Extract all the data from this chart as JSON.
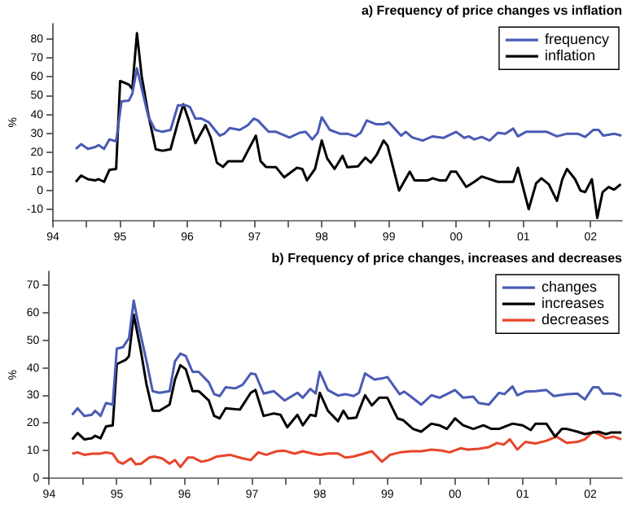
{
  "chart_data": [
    {
      "type": "line",
      "title": "a) Frequency of price changes vs inflation",
      "ylabel": "%",
      "legend": "top right",
      "grid": false,
      "marker": "none",
      "xlim": [
        1994,
        2002.47
      ],
      "xticks": [
        {
          "value": 1994,
          "label": "94"
        },
        {
          "value": 1994.5,
          "label": null
        },
        {
          "value": 1995,
          "label": "95"
        },
        {
          "value": 1995.5,
          "label": null
        },
        {
          "value": 1996,
          "label": "96"
        },
        {
          "value": 1996.5,
          "label": null
        },
        {
          "value": 1997,
          "label": "97"
        },
        {
          "value": 1997.5,
          "label": null
        },
        {
          "value": 1998,
          "label": "98"
        },
        {
          "value": 1998.5,
          "label": null
        },
        {
          "value": 1999,
          "label": "99"
        },
        {
          "value": 1999.5,
          "label": null
        },
        {
          "value": 2000,
          "label": "00"
        },
        {
          "value": 2000.5,
          "label": null
        },
        {
          "value": 2001,
          "label": "01"
        },
        {
          "value": 2001.5,
          "label": null
        },
        {
          "value": 2002,
          "label": "02"
        }
      ],
      "ylim": [
        -16,
        88
      ],
      "yticks": [
        -10,
        0,
        10,
        20,
        30,
        40,
        50,
        60,
        70,
        80
      ],
      "series": [
        {
          "name": "frequency",
          "color": "#4a5bb5",
          "x": [
            1994.34,
            1994.42,
            1994.52,
            1994.63,
            1994.68,
            1994.76,
            1994.84,
            1994.94,
            1995.02,
            1995.13,
            1995.18,
            1995.25,
            1995.32,
            1995.42,
            1995.52,
            1995.63,
            1995.75,
            1995.86,
            1995.98,
            1996.04,
            1996.12,
            1996.21,
            1996.32,
            1996.48,
            1996.55,
            1996.63,
            1996.78,
            1996.9,
            1996.99,
            1997.05,
            1997.13,
            1997.21,
            1997.32,
            1997.52,
            1997.67,
            1997.76,
            1997.86,
            1997.94,
            1998.0,
            1998.12,
            1998.27,
            1998.38,
            1998.5,
            1998.58,
            1998.67,
            1998.81,
            1998.92,
            1999.0,
            1999.18,
            1999.25,
            1999.35,
            1999.5,
            1999.65,
            1999.81,
            2000.0,
            2000.12,
            2000.19,
            2000.27,
            2000.38,
            2000.5,
            2000.62,
            2000.73,
            2000.85,
            2000.92,
            2001.04,
            2001.19,
            2001.35,
            2001.5,
            2001.65,
            2001.81,
            2001.92,
            2002.04,
            2002.12,
            2002.19,
            2002.35,
            2002.46
          ],
          "values": [
            22,
            24.5,
            22,
            23,
            24,
            22,
            27,
            26,
            47,
            47.5,
            51,
            64.5,
            54,
            39,
            32,
            31,
            32,
            45,
            45,
            44,
            38,
            38,
            36,
            29,
            30,
            33,
            32,
            34.5,
            38,
            37,
            34,
            31,
            31,
            28,
            30.5,
            31,
            27,
            30.5,
            38.7,
            32,
            30,
            30,
            28.6,
            30.5,
            37,
            35,
            35,
            36,
            29,
            31,
            28,
            26.4,
            28.6,
            27.8,
            31,
            27.8,
            28.6,
            27,
            28.3,
            26.4,
            30.5,
            30,
            32.7,
            28.6,
            31,
            31,
            31,
            28.6,
            30,
            30,
            28.3,
            32,
            32,
            29,
            30,
            29
          ]
        },
        {
          "name": "inflation",
          "color": "#000000",
          "x": [
            1994.34,
            1994.42,
            1994.52,
            1994.63,
            1994.68,
            1994.76,
            1994.84,
            1994.94,
            1995.0,
            1995.13,
            1995.18,
            1995.25,
            1995.32,
            1995.42,
            1995.53,
            1995.63,
            1995.75,
            1995.86,
            1995.94,
            1996.02,
            1996.12,
            1996.27,
            1996.35,
            1996.44,
            1996.53,
            1996.61,
            1996.82,
            1996.9,
            1997.02,
            1997.09,
            1997.17,
            1997.32,
            1997.44,
            1997.63,
            1997.71,
            1997.78,
            1997.9,
            1998.0,
            1998.08,
            1998.19,
            1998.31,
            1998.38,
            1998.54,
            1998.65,
            1998.73,
            1998.82,
            1998.92,
            1998.98,
            1999.15,
            1999.31,
            1999.38,
            1999.58,
            1999.65,
            1999.75,
            1999.85,
            1999.92,
            2000.0,
            2000.15,
            2000.27,
            2000.38,
            2000.46,
            2000.62,
            2000.77,
            2000.85,
            2000.92,
            2001.08,
            2001.19,
            2001.27,
            2001.38,
            2001.5,
            2001.58,
            2001.65,
            2001.77,
            2001.85,
            2001.92,
            2002.02,
            2002.1,
            2002.18,
            2002.27,
            2002.35,
            2002.45
          ],
          "values": [
            4.6,
            7.9,
            6,
            5.4,
            6,
            4.6,
            10.9,
            11.4,
            57.8,
            55.9,
            53.7,
            83,
            60.5,
            40,
            21.8,
            21,
            21.8,
            36,
            45.5,
            37.3,
            25,
            34.6,
            27.8,
            14.7,
            12.5,
            15.5,
            15.5,
            21,
            29,
            15.5,
            12.5,
            12.3,
            7,
            12,
            11.4,
            5.4,
            11.4,
            26.4,
            17,
            11.4,
            18.3,
            12.3,
            12.8,
            17.4,
            14.7,
            19,
            26.4,
            23.7,
            0,
            10,
            5.4,
            5.4,
            6.5,
            5.4,
            5.4,
            10,
            10,
            1.9,
            4.6,
            7.4,
            6.5,
            4.6,
            4.6,
            4.6,
            12,
            -9.8,
            3.8,
            6.5,
            3.3,
            -5.4,
            6,
            11.4,
            6,
            0,
            -0.8,
            6,
            -14.4,
            -0.8,
            1.9,
            0.5,
            3.3
          ]
        }
      ]
    },
    {
      "type": "line",
      "title": "b) Frequency of price changes, increases and decreases",
      "ylabel": "%",
      "legend": "top right",
      "grid": false,
      "marker": "none",
      "xlim": [
        1994,
        2002.47
      ],
      "xticks": [
        {
          "value": 1994,
          "label": "94"
        },
        {
          "value": 1994.5,
          "label": null
        },
        {
          "value": 1995,
          "label": "95"
        },
        {
          "value": 1995.5,
          "label": null
        },
        {
          "value": 1996,
          "label": "96"
        },
        {
          "value": 1996.5,
          "label": null
        },
        {
          "value": 1997,
          "label": "97"
        },
        {
          "value": 1997.5,
          "label": null
        },
        {
          "value": 1998,
          "label": "98"
        },
        {
          "value": 1998.5,
          "label": null
        },
        {
          "value": 1999,
          "label": "99"
        },
        {
          "value": 1999.5,
          "label": null
        },
        {
          "value": 2000,
          "label": "00"
        },
        {
          "value": 2000.5,
          "label": null
        },
        {
          "value": 2001,
          "label": "01"
        },
        {
          "value": 2001.5,
          "label": null
        },
        {
          "value": 2002,
          "label": "02"
        }
      ],
      "ylim": [
        0,
        75
      ],
      "yticks": [
        0,
        10,
        20,
        30,
        40,
        50,
        60,
        70
      ],
      "series": [
        {
          "name": "changes",
          "color": "#4a5bb5",
          "x": [
            1994.34,
            1994.42,
            1994.52,
            1994.63,
            1994.68,
            1994.76,
            1994.84,
            1994.94,
            1995.0,
            1995.09,
            1995.18,
            1995.25,
            1995.32,
            1995.44,
            1995.53,
            1995.63,
            1995.78,
            1995.86,
            1995.94,
            1996.02,
            1996.12,
            1996.21,
            1996.36,
            1996.44,
            1996.52,
            1996.61,
            1996.75,
            1996.86,
            1996.98,
            1997.05,
            1997.17,
            1997.32,
            1997.48,
            1997.67,
            1997.75,
            1997.86,
            1997.94,
            1998.0,
            1998.12,
            1998.27,
            1998.38,
            1998.5,
            1998.58,
            1998.67,
            1998.81,
            1998.92,
            1999.0,
            1999.18,
            1999.25,
            1999.35,
            1999.5,
            1999.65,
            1999.77,
            2000.0,
            2000.12,
            2000.27,
            2000.35,
            2000.5,
            2000.65,
            2000.73,
            2000.85,
            2000.92,
            2001.04,
            2001.19,
            2001.35,
            2001.46,
            2001.65,
            2001.81,
            2001.92,
            2002.04,
            2002.12,
            2002.19,
            2002.35,
            2002.46
          ],
          "values": [
            23,
            25.4,
            22.6,
            23,
            24.5,
            22.6,
            27.3,
            26.7,
            47,
            47.5,
            50.8,
            64.4,
            55.6,
            42.4,
            31.6,
            31,
            31.6,
            42.4,
            45.2,
            44.3,
            38.6,
            38.6,
            34.8,
            30.5,
            29.8,
            33,
            32.6,
            33.9,
            38,
            37.7,
            30.7,
            31.6,
            28.2,
            31,
            29.2,
            32.4,
            30.7,
            38.6,
            32,
            30,
            30.5,
            29.8,
            31,
            38,
            35.8,
            36.2,
            36.7,
            30.5,
            31.4,
            29.6,
            26.7,
            30.1,
            29.2,
            32,
            29.2,
            29.6,
            27.3,
            26.7,
            31,
            30.5,
            33.3,
            30.1,
            31.4,
            31.6,
            32,
            29.8,
            30.5,
            30.7,
            28.6,
            33,
            33,
            30.7,
            30.7,
            29.8
          ]
        },
        {
          "name": "increases",
          "color": "#000000",
          "x": [
            1994.34,
            1994.42,
            1994.52,
            1994.63,
            1994.68,
            1994.76,
            1994.84,
            1994.94,
            1995.0,
            1995.13,
            1995.18,
            1995.25,
            1995.35,
            1995.44,
            1995.53,
            1995.63,
            1995.78,
            1995.86,
            1995.94,
            1996.02,
            1996.12,
            1996.21,
            1996.36,
            1996.44,
            1996.52,
            1996.61,
            1996.82,
            1996.98,
            1997.05,
            1997.17,
            1997.32,
            1997.42,
            1997.52,
            1997.67,
            1997.75,
            1997.86,
            1997.94,
            1998.0,
            1998.12,
            1998.27,
            1998.35,
            1998.42,
            1998.54,
            1998.67,
            1998.77,
            1998.88,
            1999.0,
            1999.15,
            1999.23,
            1999.38,
            1999.5,
            1999.65,
            1999.77,
            1999.88,
            2000.0,
            2000.12,
            2000.27,
            2000.42,
            2000.54,
            2000.65,
            2000.85,
            2001.0,
            2001.12,
            2001.19,
            2001.35,
            2001.48,
            2001.58,
            2001.65,
            2001.81,
            2001.92,
            2002.04,
            2002.12,
            2002.23,
            2002.31,
            2002.46
          ],
          "values": [
            14.1,
            16.4,
            14.1,
            14.5,
            15.4,
            14.5,
            18.8,
            19.2,
            41.4,
            42.9,
            44.3,
            59.3,
            47,
            33.9,
            24.5,
            24.5,
            26.7,
            35.8,
            41,
            39.5,
            31.6,
            31.6,
            28.2,
            22.6,
            21.7,
            25.4,
            24.9,
            31,
            32,
            22.6,
            23.5,
            23,
            18.5,
            23,
            19.2,
            23,
            22.6,
            31,
            24.5,
            20.7,
            24.5,
            21.7,
            22,
            30.1,
            26.4,
            29.2,
            29.2,
            21.7,
            21.1,
            17.9,
            16.9,
            19.8,
            19.2,
            17.9,
            21.7,
            19.2,
            17.9,
            19.2,
            17.9,
            17.9,
            19.8,
            19.2,
            17.5,
            19.8,
            19.8,
            15.1,
            17.9,
            17.9,
            16.9,
            16,
            16.6,
            16.9,
            16,
            16.6,
            16.6
          ]
        },
        {
          "name": "decreases",
          "color": "#e8442a",
          "x": [
            1994.34,
            1994.42,
            1994.52,
            1994.63,
            1994.75,
            1994.84,
            1994.94,
            1995.02,
            1995.09,
            1995.21,
            1995.28,
            1995.36,
            1995.48,
            1995.55,
            1995.67,
            1995.78,
            1995.86,
            1995.94,
            1996.05,
            1996.13,
            1996.25,
            1996.36,
            1996.48,
            1996.67,
            1996.86,
            1996.98,
            1997.09,
            1997.21,
            1997.36,
            1997.48,
            1997.63,
            1997.75,
            1997.9,
            1998.0,
            1998.12,
            1998.27,
            1998.38,
            1998.5,
            1998.65,
            1998.77,
            1998.92,
            1999.04,
            1999.19,
            1999.35,
            1999.5,
            1999.65,
            1999.81,
            1999.92,
            2000.08,
            2000.19,
            2000.35,
            2000.5,
            2000.62,
            2000.72,
            2000.81,
            2000.92,
            2001.04,
            2001.19,
            2001.35,
            2001.5,
            2001.65,
            2001.81,
            2001.92,
            2002.04,
            2002.12,
            2002.23,
            2002.35,
            2002.46
          ],
          "values": [
            8.9,
            9.4,
            8.5,
            8.9,
            8.9,
            9.4,
            8.9,
            6,
            5.3,
            7.2,
            5.1,
            5.3,
            7.5,
            7.9,
            7.2,
            5.3,
            6.6,
            4.1,
            7.5,
            7.5,
            6,
            6.6,
            7.9,
            8.5,
            7.2,
            6.6,
            9.4,
            8.5,
            9.8,
            10,
            8.9,
            9.8,
            8.9,
            8.5,
            9,
            9,
            7.5,
            7.9,
            8.9,
            9.8,
            6,
            8.5,
            9.4,
            9.8,
            9.8,
            10.4,
            10,
            9.4,
            10.9,
            10.4,
            10.7,
            11.3,
            12.8,
            12.2,
            14.1,
            10.4,
            13.2,
            12.6,
            13.6,
            15.1,
            12.8,
            13.2,
            14.1,
            16.9,
            16,
            14.5,
            15.1,
            14.1
          ]
        }
      ]
    }
  ]
}
